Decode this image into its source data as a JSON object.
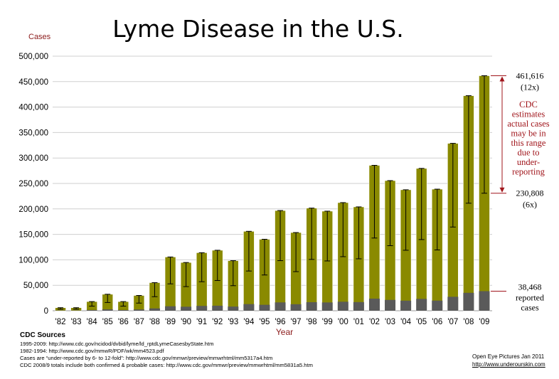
{
  "chart_data": {
    "type": "bar",
    "title": "Lyme Disease in the U.S.",
    "xlabel": "Year",
    "ylabel": "Cases",
    "ylim": [
      0,
      500000
    ],
    "yticks": [
      0,
      50000,
      100000,
      150000,
      200000,
      250000,
      300000,
      350000,
      400000,
      450000,
      500000
    ],
    "ytick_labels": [
      "0",
      "50,000",
      "100,000",
      "150,000",
      "200,000",
      "250,000",
      "300,000",
      "350,000",
      "400,000",
      "450,000",
      "500,000"
    ],
    "categories": [
      "'82",
      "'83",
      "'84",
      "'85",
      "'86",
      "'87",
      "'88",
      "'89",
      "'90",
      "'91",
      "'92",
      "'93",
      "'94",
      "'95",
      "'96",
      "'97",
      "'98",
      "'99",
      "'00",
      "'01",
      "'02",
      "'03",
      "'04",
      "'05",
      "'06",
      "'07",
      "'08",
      "'09"
    ],
    "series": [
      {
        "role": "reported",
        "color": "#5a5a5a",
        "values": [
          500,
          500,
          1500,
          2700,
          1500,
          2500,
          4600,
          8800,
          7900,
          9500,
          9900,
          8200,
          13000,
          11700,
          16400,
          12800,
          16800,
          16300,
          17700,
          17000,
          23800,
          21300,
          19800,
          23300,
          19900,
          27400,
          35200,
          38468
        ]
      },
      {
        "role": "estimated (12x)",
        "color": "#8a8a00",
        "values": [
          6000,
          6000,
          18000,
          32400,
          18000,
          30000,
          55200,
          105600,
          94800,
          114000,
          118800,
          98400,
          156000,
          140400,
          196800,
          153600,
          201600,
          195600,
          212400,
          204000,
          285600,
          255600,
          237600,
          279600,
          238800,
          328800,
          422400,
          461616
        ]
      }
    ],
    "error_range": {
      "description": "6x to 12x reported",
      "low": [
        3000,
        3000,
        9000,
        16200,
        9000,
        15000,
        27600,
        52800,
        47400,
        57000,
        59400,
        49200,
        78000,
        70200,
        98400,
        76800,
        100800,
        97800,
        106200,
        102000,
        142800,
        127800,
        118800,
        139800,
        119400,
        164400,
        211200,
        230808
      ],
      "high": [
        6000,
        6000,
        18000,
        32400,
        18000,
        30000,
        55200,
        105600,
        94800,
        114000,
        118800,
        98400,
        156000,
        140400,
        196800,
        153600,
        201600,
        195600,
        212400,
        204000,
        285600,
        255600,
        237600,
        279600,
        238800,
        328800,
        422400,
        461616
      ]
    },
    "annotations": {
      "top_value": "461,616",
      "top_mult": "(12x)",
      "mid_value": "230,808",
      "mid_mult": "(6x)",
      "low_value": "38,468",
      "low_l1": "reported",
      "low_l2": "cases",
      "cdc_lines": [
        "CDC",
        "estimates",
        "actual cases",
        "may be in",
        "this range",
        "due to",
        "under-",
        "reporting"
      ]
    },
    "colors": {
      "estimated": "#8a8a00",
      "reported": "#5a5a5a",
      "annotation_red": "#a0151b",
      "axis_red": "#8b1a1a"
    }
  },
  "sources": {
    "heading": "CDC Sources",
    "lines": [
      "1995-2009: http://www.cdc.gov/ncidod/dvbid/lyme/ld_rptdLymeCasesbyState.htm",
      "1982-1994: http://www.cdc.gov/mmwR/PDF/wk/mm4523.pdf",
      "Cases are “under-reported by 6- to 12-fold”: http://www.cdc.gov/mmwr/preview/mmwrhtml/mm5317a4.htm",
      "CDC 2008/9 totals include both confirmed & probable cases: http://www.cdc.gov/mmwr/preview/mmwrhtml/mm5831a5.htm"
    ]
  },
  "credit": {
    "line1": "Open Eye Pictures Jan 2011",
    "line2": "http://www.underourskin.com"
  }
}
